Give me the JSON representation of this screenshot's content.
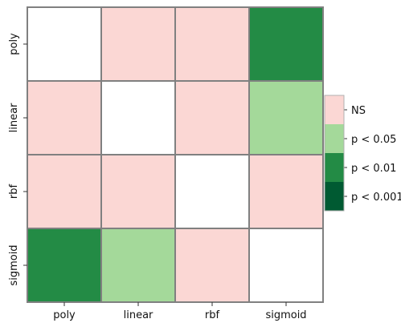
{
  "chart_data": {
    "type": "heatmap",
    "rows": [
      "poly",
      "linear",
      "rbf",
      "sigmoid"
    ],
    "columns": [
      "poly",
      "linear",
      "rbf",
      "sigmoid"
    ],
    "cells": [
      [
        null,
        "NS",
        "NS",
        "p < 0.01"
      ],
      [
        "NS",
        null,
        "NS",
        "p < 0.05"
      ],
      [
        "NS",
        "NS",
        null,
        "NS"
      ],
      [
        "p < 0.01",
        "p < 0.05",
        "NS",
        null
      ]
    ],
    "legend": {
      "placement": "right",
      "entries": [
        {
          "label": "NS",
          "color": "#fbd7d4"
        },
        {
          "label": "p < 0.05",
          "color": "#a4d99a"
        },
        {
          "label": "p < 0.01",
          "color": "#238b45"
        },
        {
          "label": "p < 0.001",
          "color": "#005a32"
        }
      ]
    },
    "empty_cell_color": "#ffffff",
    "cell_border_color": "#808080"
  }
}
